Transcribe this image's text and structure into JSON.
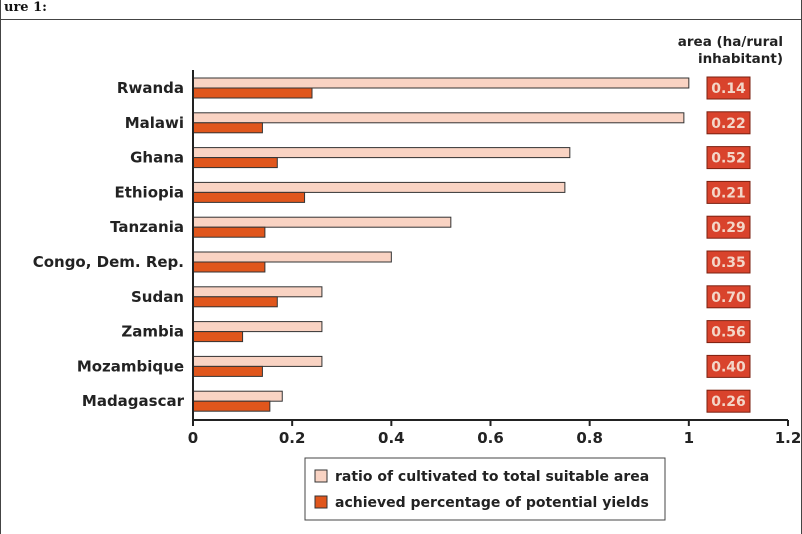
{
  "header": {
    "text": "ure 1:"
  },
  "chart_data": {
    "type": "bar",
    "orientation": "horizontal",
    "categories": [
      "Rwanda",
      "Malawi",
      "Ghana",
      "Ethiopia",
      "Tanzania",
      "Congo, Dem. Rep.",
      "Sudan",
      "Zambia",
      "Mozambique",
      "Madagascar"
    ],
    "series": [
      {
        "name": "ratio of cultivated to total suitable area",
        "color": "#f9d3c3",
        "values": [
          1.0,
          0.99,
          0.76,
          0.75,
          0.52,
          0.4,
          0.26,
          0.26,
          0.26,
          0.18
        ]
      },
      {
        "name": "achieved percentage of potential yields",
        "color": "#e0561c",
        "values": [
          0.24,
          0.14,
          0.17,
          0.225,
          0.145,
          0.145,
          0.17,
          0.1,
          0.14,
          0.155
        ]
      }
    ],
    "xlim": [
      0,
      1.2
    ],
    "xticks": [
      "0",
      "0.2",
      "0.4",
      "0.6",
      "0.8",
      "1",
      "1.2"
    ],
    "annotation": {
      "title_line1": "area (ha/rural",
      "title_line2": "inhabitant)",
      "values": [
        "0.14",
        "0.22",
        "0.52",
        "0.21",
        "0.29",
        "0.35",
        "0.70",
        "0.56",
        "0.40",
        "0.26"
      ],
      "color": "#d9432c"
    },
    "legend": {
      "placement": "bottom"
    }
  }
}
